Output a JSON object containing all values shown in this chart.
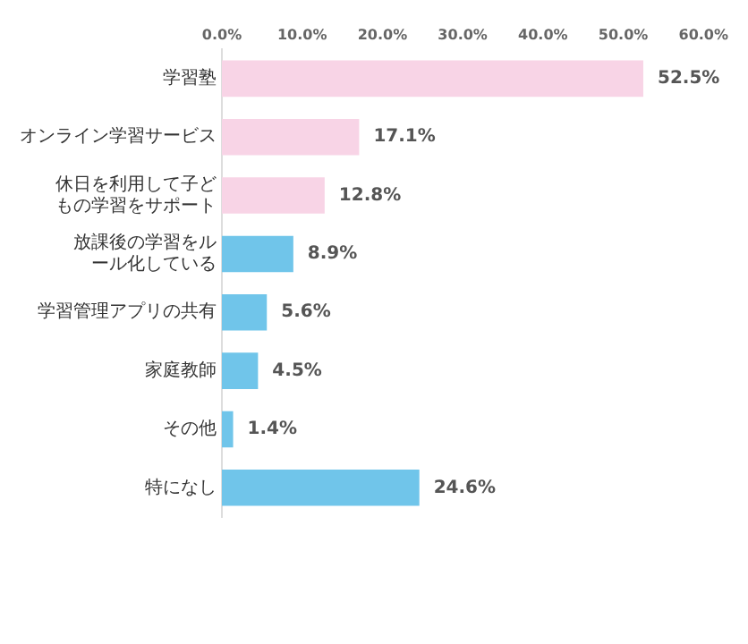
{
  "chart_data": {
    "type": "bar",
    "orientation": "horizontal",
    "categories": [
      "学習塾",
      "オンライン学習サービス",
      "休日を利用して子どもの学習をサポート",
      "放課後の学習をルール化している",
      "学習管理アプリの共有",
      "家庭教師",
      "その他",
      "特になし"
    ],
    "values": [
      52.5,
      17.1,
      12.8,
      8.9,
      5.6,
      4.5,
      1.4,
      24.6
    ],
    "colors": [
      "#f8d4e6",
      "#f8d4e6",
      "#f8d4e6",
      "#70c5ea",
      "#70c5ea",
      "#70c5ea",
      "#70c5ea",
      "#70c5ea"
    ],
    "value_labels": [
      "52.5%",
      "17.1%",
      "12.8%",
      "8.9%",
      "5.6%",
      "4.5%",
      "1.4%",
      "24.6%"
    ],
    "xlim": [
      0,
      60
    ],
    "xticks": [
      {
        "value": 0,
        "label": "0.0%"
      },
      {
        "value": 10,
        "label": "10.0%"
      },
      {
        "value": 20,
        "label": "20.0%"
      },
      {
        "value": 30,
        "label": "30.0%"
      },
      {
        "value": 40,
        "label": "40.0%"
      },
      {
        "value": 50,
        "label": "50.0%"
      },
      {
        "value": 60,
        "label": "60.0%"
      }
    ],
    "grid": false,
    "legend": false
  }
}
